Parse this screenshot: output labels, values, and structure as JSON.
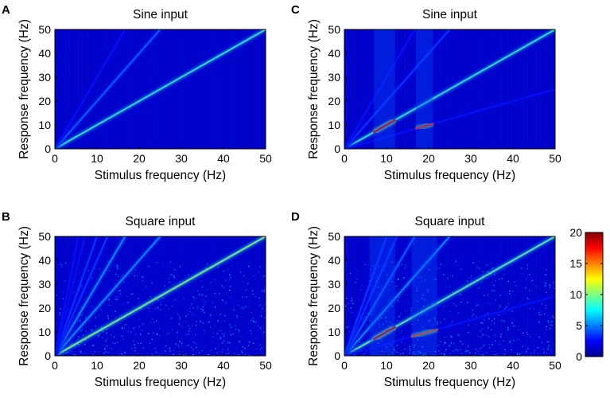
{
  "colors": {
    "colormap": [
      "#00008f",
      "#0000ff",
      "#0080ff",
      "#00ffff",
      "#80ff80",
      "#ffff00",
      "#ff8000",
      "#ff0000",
      "#800000"
    ],
    "background": "#ffffff"
  },
  "colorbar": {
    "min": 0,
    "max": 20,
    "ticks": [
      "0",
      "5",
      "10",
      "15",
      "20"
    ]
  },
  "chart_data": [
    {
      "panel": "A",
      "type": "heatmap",
      "title": "Sine input",
      "xlabel": "Stimulus frequency (Hz)",
      "ylabel": "Response frequency (Hz)",
      "xlim": [
        0,
        50
      ],
      "ylim": [
        0,
        50
      ],
      "xticks": [
        "0",
        "10",
        "20",
        "30",
        "40",
        "50"
      ],
      "yticks": [
        "0",
        "10",
        "20",
        "30",
        "40",
        "50"
      ],
      "color_range": [
        0,
        20
      ],
      "features": [
        {
          "kind": "line",
          "slope": 1,
          "intensity": 9
        },
        {
          "kind": "line",
          "slope": 2,
          "intensity": 5
        },
        {
          "kind": "line",
          "slope": 3,
          "intensity": 3
        }
      ]
    },
    {
      "panel": "B",
      "type": "heatmap",
      "title": "Square input",
      "xlabel": "Stimulus frequency (Hz)",
      "ylabel": "Response frequency (Hz)",
      "xlim": [
        0,
        50
      ],
      "ylim": [
        0,
        50
      ],
      "xticks": [
        "0",
        "10",
        "20",
        "30",
        "40",
        "50"
      ],
      "yticks": [
        "0",
        "10",
        "20",
        "30",
        "40",
        "50"
      ],
      "color_range": [
        0,
        20
      ],
      "features": [
        {
          "kind": "line",
          "slope": 1,
          "intensity": 11
        },
        {
          "kind": "line",
          "slope": 2,
          "intensity": 6
        },
        {
          "kind": "line",
          "slope": 3,
          "intensity": 6
        },
        {
          "kind": "line",
          "slope": 4,
          "intensity": 4
        },
        {
          "kind": "line",
          "slope": 5,
          "intensity": 4
        },
        {
          "kind": "line",
          "slope": 7,
          "intensity": 3
        },
        {
          "kind": "line",
          "slope": 9,
          "intensity": 3
        }
      ]
    },
    {
      "panel": "C",
      "type": "heatmap",
      "title": "Sine input",
      "xlabel": "Stimulus frequency (Hz)",
      "ylabel": "Response frequency (Hz)",
      "xlim": [
        0,
        50
      ],
      "ylim": [
        0,
        50
      ],
      "xticks": [
        "0",
        "10",
        "20",
        "30",
        "40",
        "50"
      ],
      "yticks": [
        "0",
        "10",
        "20",
        "30",
        "40",
        "50"
      ],
      "color_range": [
        0,
        20
      ],
      "features": [
        {
          "kind": "line",
          "slope": 1,
          "intensity": 9
        },
        {
          "kind": "line",
          "slope": 2,
          "intensity": 4
        },
        {
          "kind": "line",
          "slope": 3,
          "intensity": 3
        },
        {
          "kind": "line",
          "slope": 0.5,
          "intensity": 3
        },
        {
          "kind": "segment",
          "x": [
            7,
            12
          ],
          "slope": 1,
          "intensity": 18
        },
        {
          "kind": "segment",
          "x": [
            17,
            21
          ],
          "y": [
            8.5,
            10.5
          ],
          "intensity": 17
        },
        {
          "kind": "band",
          "x": [
            7,
            12
          ],
          "intensity": 4
        },
        {
          "kind": "band",
          "x": [
            17,
            21
          ],
          "intensity": 4
        }
      ]
    },
    {
      "panel": "D",
      "type": "heatmap",
      "title": "Square input",
      "xlabel": "Stimulus frequency (Hz)",
      "ylabel": "Response frequency (Hz)",
      "xlim": [
        0,
        50
      ],
      "ylim": [
        0,
        50
      ],
      "xticks": [
        "0",
        "10",
        "20",
        "30",
        "40",
        "50"
      ],
      "yticks": [
        "0",
        "10",
        "20",
        "30",
        "40",
        "50"
      ],
      "color_range": [
        0,
        20
      ],
      "features": [
        {
          "kind": "line",
          "slope": 1,
          "intensity": 10
        },
        {
          "kind": "line",
          "slope": 2,
          "intensity": 6
        },
        {
          "kind": "line",
          "slope": 3,
          "intensity": 5
        },
        {
          "kind": "line",
          "slope": 4,
          "intensity": 4
        },
        {
          "kind": "line",
          "slope": 5,
          "intensity": 4
        },
        {
          "kind": "line",
          "slope": 0.5,
          "intensity": 3
        },
        {
          "kind": "segment",
          "x": [
            7,
            12
          ],
          "slope": 1,
          "intensity": 18
        },
        {
          "kind": "segment",
          "x": [
            16,
            22
          ],
          "y": [
            8,
            11
          ],
          "intensity": 16
        },
        {
          "kind": "band",
          "x": [
            6,
            12
          ],
          "intensity": 4
        },
        {
          "kind": "band",
          "x": [
            16,
            22
          ],
          "intensity": 4
        }
      ]
    }
  ]
}
